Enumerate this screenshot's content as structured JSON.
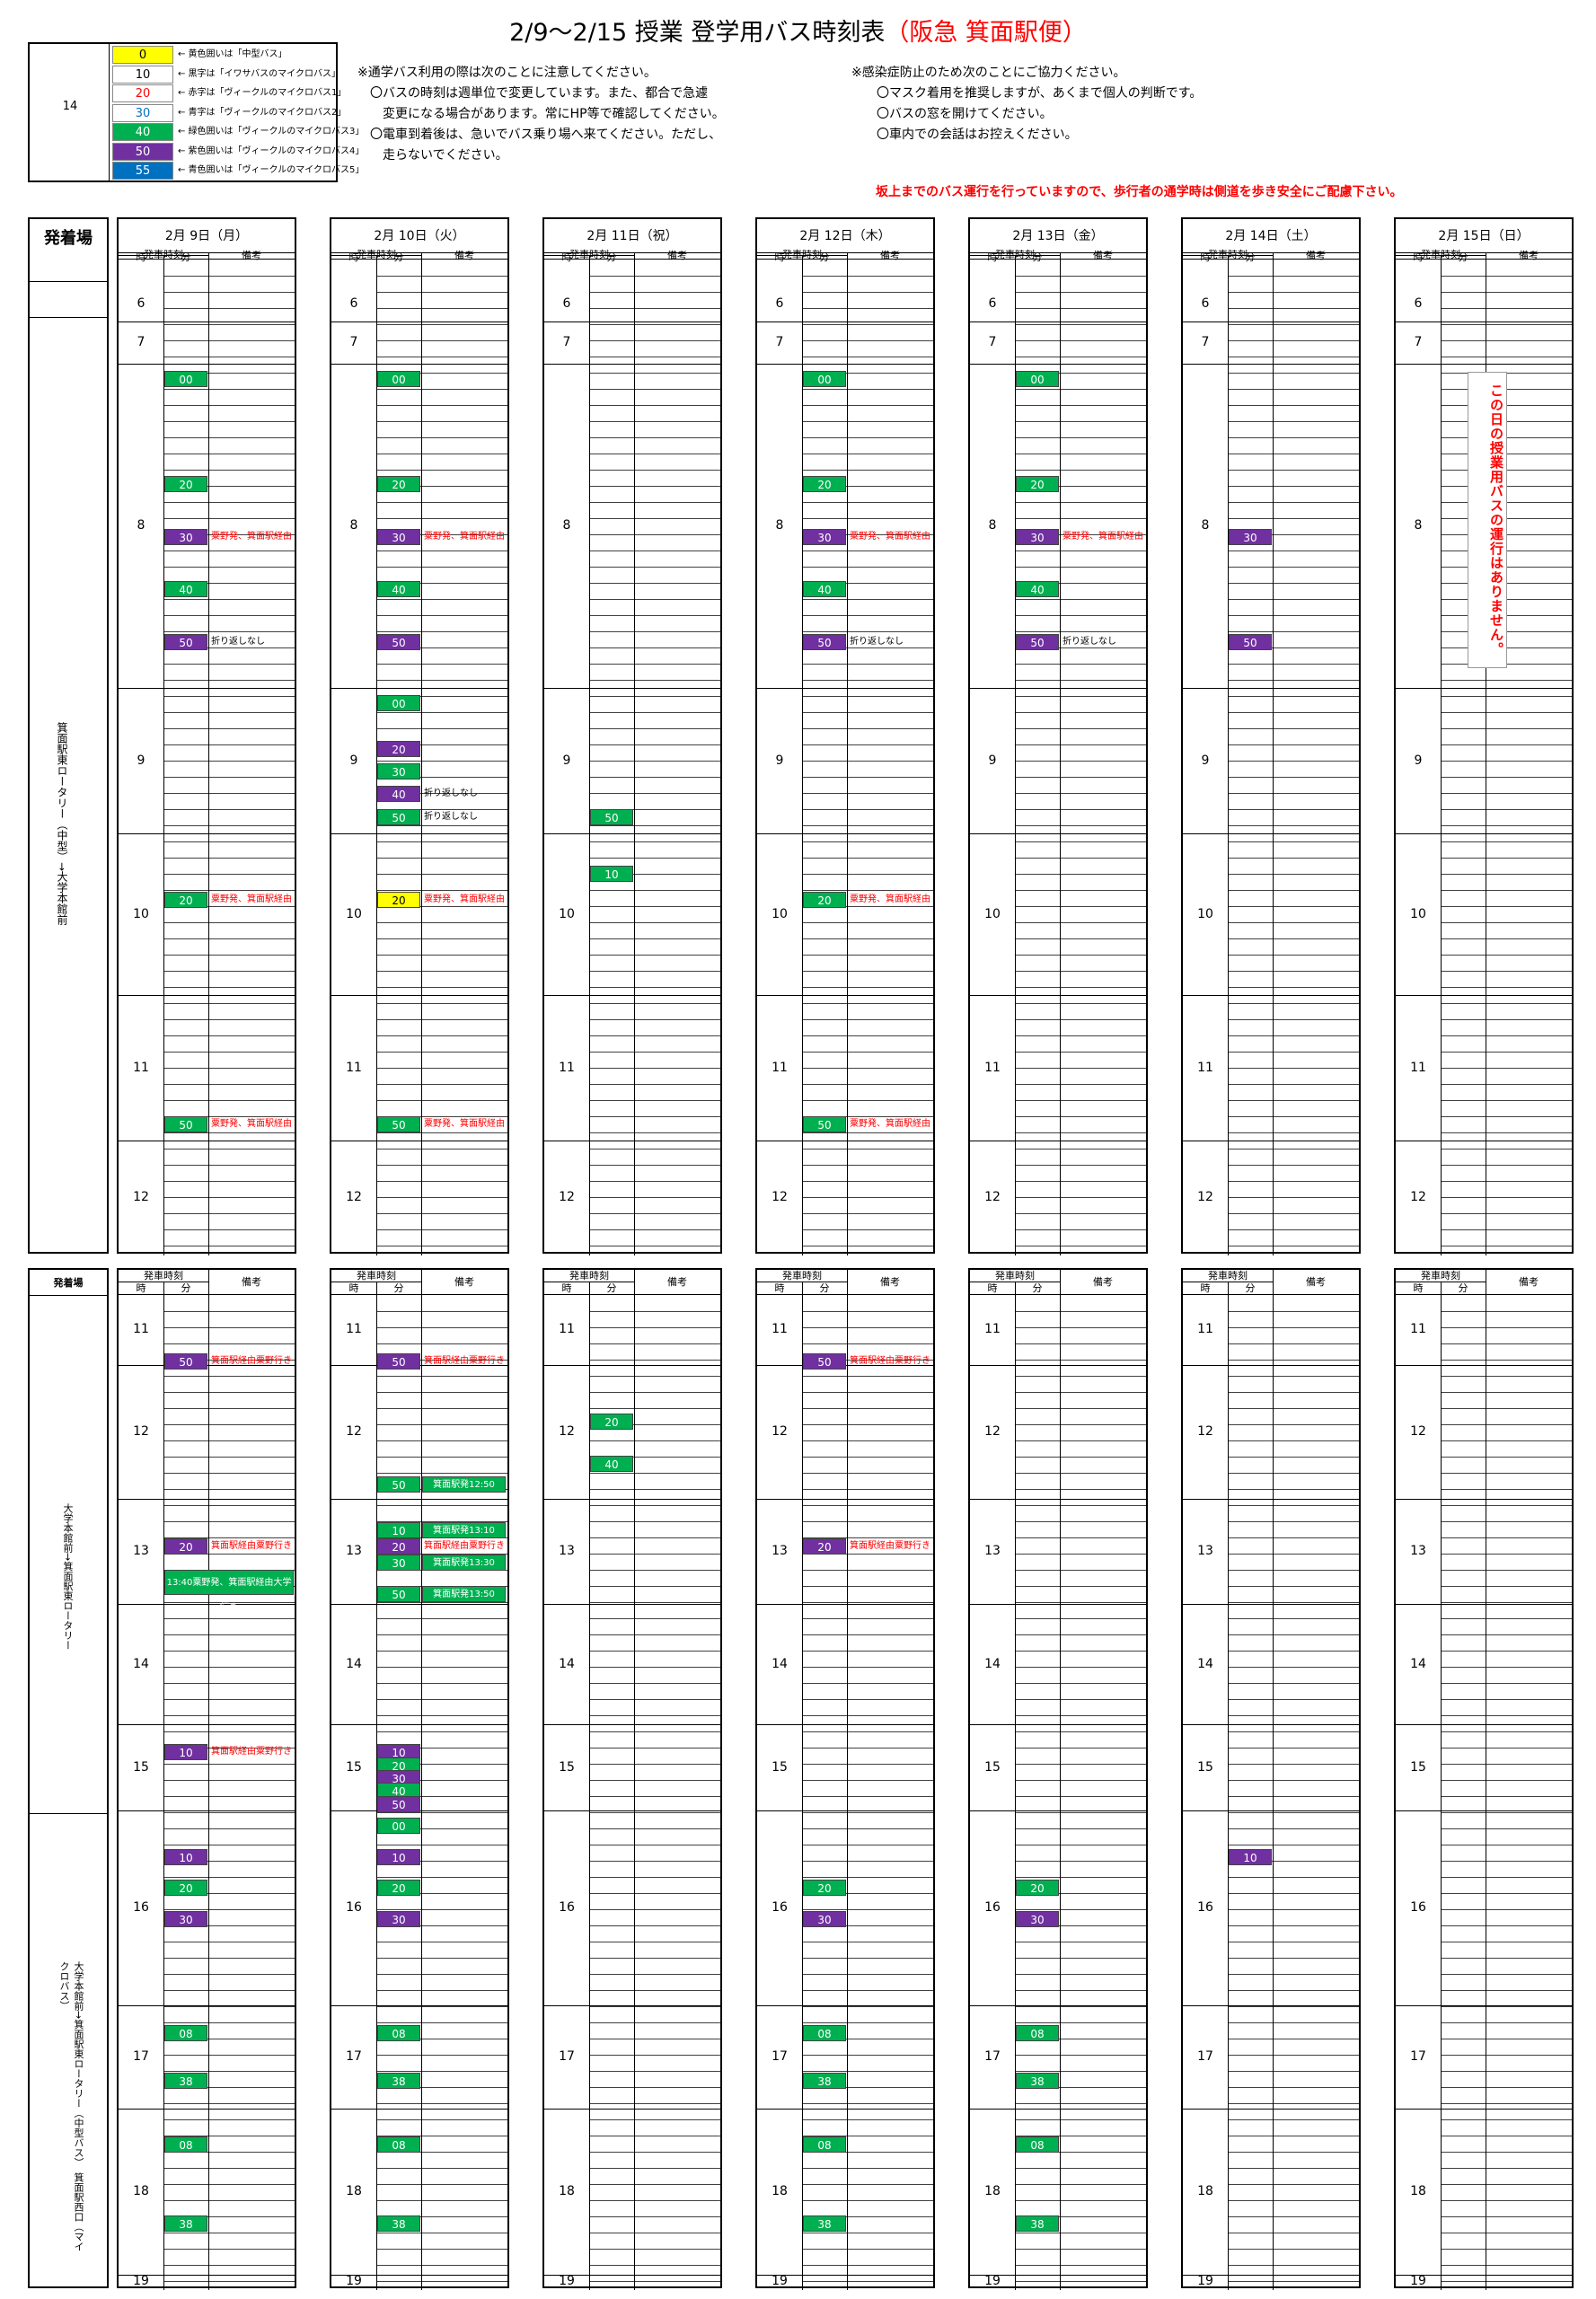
{
  "title": {
    "main": "2/9～2/15 授業 登学用バス時刻表",
    "red": "（阪急 箕面駅便）"
  },
  "legend": {
    "side_number": "14",
    "items": [
      {
        "num": "0",
        "color": "#ffff00",
        "text_color": "#000000",
        "desc": "← 黄色囲いは「中型バス」"
      },
      {
        "num": "10",
        "color": "#ffffff",
        "text_color": "#000000",
        "desc": "← 黒字は「イワサバスのマイクロバス」"
      },
      {
        "num": "20",
        "color": "#ffffff",
        "text_color": "#ff0000",
        "desc": "← 赤字は「ヴィークルのマイクロバス1」"
      },
      {
        "num": "30",
        "color": "#ffffff",
        "text_color": "#0070c0",
        "desc": "← 青字は「ヴィークルのマイクロバス2」"
      },
      {
        "num": "40",
        "color": "#00b050",
        "text_color": "#ffffff",
        "desc": "← 緑色囲いは「ヴィークルのマイクロバス3」"
      },
      {
        "num": "50",
        "color": "#7030a0",
        "text_color": "#ffffff",
        "desc": "← 紫色囲いは「ヴィークルのマイクロバス4」"
      },
      {
        "num": "55",
        "color": "#0070c0",
        "text_color": "#ffffff",
        "desc": "← 青色囲いは「ヴィークルのマイクロバス5」"
      }
    ]
  },
  "notes_left": "※通学バス利用の際は次のことに注意してください。\n　〇バスの時刻は週単位で変更しています。また、都合で急遽\n　　変更になる場合があります。常にHP等で確認してください。\n　〇電車到着後は、急いでバス乗り場へ来てください。ただし、\n　　走らないでください。",
  "notes_right": "※感染症防止のため次のことにご協力ください。\n　　〇マスク着用を推奨しますが、あくまで個人の判断です。\n　　〇バスの窓を開けてください。\n　　〇車内での会話はお控えください。",
  "warning": "坂上までのバス運行を行っていますので、歩行者の通学時は側道を歩き安全にご配慮下さい。",
  "colors": {
    "green": "#00b050",
    "purple": "#7030a0",
    "yellow": "#ffff00"
  },
  "headers": {
    "station": "発着場",
    "departure": "発車時刻",
    "hour": "時",
    "minute": "分",
    "remarks": "備考"
  },
  "top_station": "箕面駅東ロータリー（中型）→大学本館前",
  "bottom_station_1": "大学本館前→箕面駅東ロータリー",
  "bottom_station_2": "大学本館前→箕面駅東ロータリー（中型バス）　箕面駅西口（マイクロバス）",
  "days": [
    "2月 9日（月）",
    "2月 10日（火）",
    "2月 11日（祝）",
    "2月 12日（木）",
    "2月 13日（金）",
    "2月 14日（土）",
    "2月 15日（日）"
  ],
  "top_hours": [
    "6",
    "7",
    "8",
    "9",
    "10",
    "11",
    "12"
  ],
  "bottom_hours": [
    "11",
    "12",
    "13",
    "14",
    "15",
    "16",
    "17",
    "18",
    "19"
  ],
  "no_service_message": "この日の授業用バスの運行はありません。",
  "top_entries": [
    [
      {
        "h": "8",
        "m": "00",
        "c": "green"
      },
      {
        "h": "8",
        "m": "20",
        "c": "green"
      },
      {
        "h": "8",
        "m": "30",
        "c": "purple",
        "note": "粟野発、箕面駅経由"
      },
      {
        "h": "8",
        "m": "40",
        "c": "green"
      },
      {
        "h": "8",
        "m": "50",
        "c": "purple",
        "note": "折り返しなし",
        "black": true
      },
      {
        "h": "10",
        "m": "20",
        "c": "green",
        "note": "粟野発、箕面駅経由"
      },
      {
        "h": "11",
        "m": "50",
        "c": "green",
        "note": "粟野発、箕面駅経由"
      }
    ],
    [
      {
        "h": "8",
        "m": "00",
        "c": "green"
      },
      {
        "h": "8",
        "m": "20",
        "c": "green"
      },
      {
        "h": "8",
        "m": "30",
        "c": "purple",
        "note": "粟野発、箕面駅経由"
      },
      {
        "h": "8",
        "m": "40",
        "c": "green"
      },
      {
        "h": "8",
        "m": "50",
        "c": "purple"
      },
      {
        "h": "9",
        "m": "00",
        "c": "green"
      },
      {
        "h": "9",
        "m": "20",
        "c": "purple"
      },
      {
        "h": "9",
        "m": "30",
        "c": "green"
      },
      {
        "h": "9",
        "m": "40",
        "c": "purple",
        "note": "折り返しなし",
        "black": true
      },
      {
        "h": "9",
        "m": "50",
        "c": "green",
        "note": "折り返しなし",
        "black": true
      },
      {
        "h": "10",
        "m": "20",
        "c": "yellow",
        "note": "粟野発、箕面駅経由"
      },
      {
        "h": "11",
        "m": "50",
        "c": "green",
        "note": "粟野発、箕面駅経由"
      }
    ],
    [
      {
        "h": "9",
        "m": "50",
        "c": "green"
      },
      {
        "h": "10",
        "m": "10",
        "c": "green"
      }
    ],
    [
      {
        "h": "8",
        "m": "00",
        "c": "green"
      },
      {
        "h": "8",
        "m": "20",
        "c": "green"
      },
      {
        "h": "8",
        "m": "30",
        "c": "purple",
        "note": "粟野発、箕面駅経由"
      },
      {
        "h": "8",
        "m": "40",
        "c": "green"
      },
      {
        "h": "8",
        "m": "50",
        "c": "purple",
        "note": "折り返しなし",
        "black": true
      },
      {
        "h": "10",
        "m": "20",
        "c": "green",
        "note": "粟野発、箕面駅経由"
      },
      {
        "h": "11",
        "m": "50",
        "c": "green",
        "note": "粟野発、箕面駅経由"
      }
    ],
    [
      {
        "h": "8",
        "m": "00",
        "c": "green"
      },
      {
        "h": "8",
        "m": "20",
        "c": "green"
      },
      {
        "h": "8",
        "m": "30",
        "c": "purple",
        "note": "粟野発、箕面駅経由"
      },
      {
        "h": "8",
        "m": "40",
        "c": "green"
      },
      {
        "h": "8",
        "m": "50",
        "c": "purple",
        "note": "折り返しなし",
        "black": true
      }
    ],
    [
      {
        "h": "8",
        "m": "30",
        "c": "purple"
      },
      {
        "h": "8",
        "m": "50",
        "c": "purple"
      }
    ],
    []
  ],
  "bottom_entries": [
    [
      {
        "h": "11",
        "m": "50",
        "c": "purple",
        "note": "箕面駅経由粟野行き"
      },
      {
        "h": "13",
        "m": "20",
        "c": "purple",
        "note": "箕面駅経由粟野行き"
      },
      {
        "h": "13",
        "m": "40",
        "c": "green",
        "long": "13:40粟野発、箕面駅経由大学行き"
      },
      {
        "h": "15",
        "m": "10",
        "c": "purple",
        "note": "箕面駅経由粟野行き"
      },
      {
        "h": "16",
        "m": "10",
        "c": "purple"
      },
      {
        "h": "16",
        "m": "20",
        "c": "green"
      },
      {
        "h": "16",
        "m": "30",
        "c": "purple"
      },
      {
        "h": "17",
        "m": "08",
        "c": "green"
      },
      {
        "h": "17",
        "m": "38",
        "c": "green"
      },
      {
        "h": "18",
        "m": "08",
        "c": "green"
      },
      {
        "h": "18",
        "m": "38",
        "c": "green"
      }
    ],
    [
      {
        "h": "11",
        "m": "50",
        "c": "purple",
        "note": "箕面駅経由粟野行き"
      },
      {
        "h": "12",
        "m": "50",
        "c": "green",
        "remark": "箕面駅発12:50"
      },
      {
        "h": "13",
        "m": "10",
        "c": "green",
        "remark": "箕面駅発13:10"
      },
      {
        "h": "13",
        "m": "20",
        "c": "purple",
        "note": "箕面駅経由粟野行き"
      },
      {
        "h": "13",
        "m": "30",
        "c": "green",
        "remark": "箕面駅発13:30"
      },
      {
        "h": "13",
        "m": "50",
        "c": "green",
        "remark": "箕面駅発13:50"
      },
      {
        "h": "15",
        "m": "10",
        "c": "purple"
      },
      {
        "h": "15",
        "m": "20",
        "c": "green"
      },
      {
        "h": "15",
        "m": "30",
        "c": "purple"
      },
      {
        "h": "15",
        "m": "40",
        "c": "green"
      },
      {
        "h": "15",
        "m": "50",
        "c": "purple"
      },
      {
        "h": "16",
        "m": "00",
        "c": "green"
      },
      {
        "h": "16",
        "m": "10",
        "c": "purple"
      },
      {
        "h": "16",
        "m": "20",
        "c": "green"
      },
      {
        "h": "16",
        "m": "30",
        "c": "purple"
      },
      {
        "h": "17",
        "m": "08",
        "c": "green"
      },
      {
        "h": "17",
        "m": "38",
        "c": "green"
      },
      {
        "h": "18",
        "m": "08",
        "c": "green"
      },
      {
        "h": "18",
        "m": "38",
        "c": "green"
      }
    ],
    [
      {
        "h": "12",
        "m": "20",
        "c": "green"
      },
      {
        "h": "12",
        "m": "40",
        "c": "green"
      }
    ],
    [
      {
        "h": "11",
        "m": "50",
        "c": "purple",
        "note": "箕面駅経由粟野行き"
      },
      {
        "h": "13",
        "m": "20",
        "c": "purple",
        "note": "箕面駅経由粟野行き"
      },
      {
        "h": "16",
        "m": "20",
        "c": "green"
      },
      {
        "h": "16",
        "m": "30",
        "c": "purple"
      },
      {
        "h": "17",
        "m": "08",
        "c": "green"
      },
      {
        "h": "17",
        "m": "38",
        "c": "green"
      },
      {
        "h": "18",
        "m": "08",
        "c": "green"
      },
      {
        "h": "18",
        "m": "38",
        "c": "green"
      }
    ],
    [
      {
        "h": "16",
        "m": "20",
        "c": "green"
      },
      {
        "h": "16",
        "m": "30",
        "c": "purple"
      },
      {
        "h": "17",
        "m": "08",
        "c": "green"
      },
      {
        "h": "17",
        "m": "38",
        "c": "green"
      },
      {
        "h": "18",
        "m": "08",
        "c": "green"
      },
      {
        "h": "18",
        "m": "38",
        "c": "green"
      }
    ],
    [
      {
        "h": "16",
        "m": "10",
        "c": "purple"
      }
    ],
    []
  ]
}
